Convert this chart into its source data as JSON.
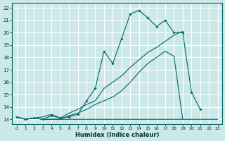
{
  "xlabel": "Humidex (Indice chaleur)",
  "bg_color": "#cce8e8",
  "grid_color": "#ffffff",
  "line_color": "#006666",
  "xlim": [
    -0.5,
    23.5
  ],
  "ylim": [
    12.6,
    22.4
  ],
  "xticks": [
    0,
    1,
    2,
    3,
    4,
    5,
    6,
    7,
    8,
    9,
    10,
    11,
    12,
    13,
    14,
    15,
    16,
    17,
    18,
    19,
    20,
    21,
    22,
    23
  ],
  "yticks": [
    13,
    14,
    15,
    16,
    17,
    18,
    19,
    20,
    21,
    22
  ],
  "line1_x": [
    0,
    1,
    2,
    3,
    4,
    5,
    6,
    7,
    8,
    9,
    10,
    11,
    12,
    13,
    14,
    15,
    16,
    17,
    18,
    19,
    20,
    21,
    22,
    23
  ],
  "line1_y": [
    13.2,
    13.0,
    13.1,
    13.0,
    13.3,
    13.1,
    13.2,
    13.4,
    14.5,
    15.5,
    18.5,
    17.5,
    19.5,
    21.5,
    21.8,
    21.2,
    20.5,
    21.0,
    20.0,
    20.0,
    15.2,
    13.8,
    null,
    null
  ],
  "line2_x": [
    0,
    1,
    2,
    3,
    4,
    5,
    6,
    7,
    8,
    9,
    10,
    11,
    12,
    13,
    14,
    15,
    16,
    17,
    18,
    19,
    20,
    21,
    22,
    23
  ],
  "line2_y": [
    13.2,
    13.0,
    13.1,
    13.2,
    13.4,
    13.1,
    13.5,
    13.8,
    14.2,
    14.5,
    15.5,
    16.0,
    16.5,
    17.2,
    17.8,
    18.4,
    18.8,
    19.3,
    19.8,
    20.1,
    null,
    null,
    null,
    null
  ],
  "line3_x": [
    0,
    1,
    2,
    3,
    4,
    5,
    6,
    7,
    8,
    9,
    10,
    11,
    12,
    13,
    14,
    15,
    16,
    17,
    18,
    19,
    20,
    21,
    22,
    23
  ],
  "line3_y": [
    13.2,
    13.0,
    13.1,
    13.0,
    13.0,
    13.0,
    13.3,
    13.5,
    13.8,
    14.2,
    14.5,
    14.8,
    15.3,
    16.0,
    16.8,
    17.5,
    18.0,
    18.5,
    18.1,
    13.0,
    13.0,
    13.0,
    13.0,
    13.0
  ],
  "line4_x": [
    0,
    1,
    2,
    3,
    4,
    5,
    6,
    7,
    8,
    9,
    10,
    11,
    12,
    13,
    14,
    15,
    16,
    17,
    18,
    19,
    20,
    21,
    22,
    23
  ],
  "line4_y": [
    13.2,
    13.0,
    13.1,
    13.0,
    13.0,
    13.0,
    13.0,
    13.0,
    13.0,
    13.0,
    13.0,
    13.0,
    13.0,
    13.0,
    13.0,
    13.0,
    13.0,
    13.0,
    13.0,
    13.0,
    null,
    null,
    null,
    null
  ]
}
